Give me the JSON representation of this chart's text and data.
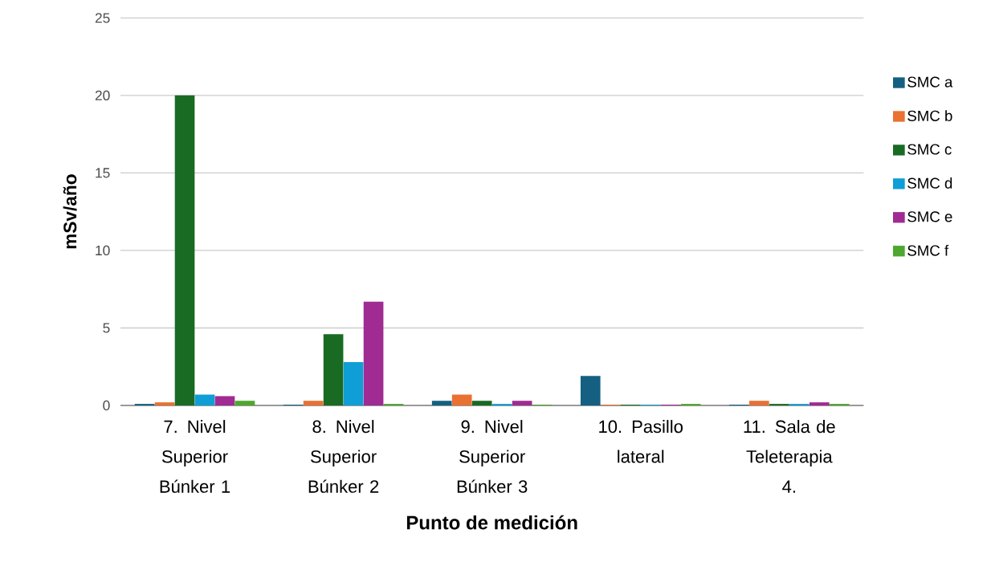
{
  "chart_data": {
    "type": "bar",
    "xlabel": "Punto de medición",
    "ylabel": "mSv/año",
    "categories": [
      "7. Nivel Superior Búnker 1",
      "8. Nivel Superior Búnker 2",
      "9. Nivel Superior Búnker 3",
      "10. Pasillo lateral",
      "11. Sala de Teleterapia 4."
    ],
    "series": [
      {
        "name": "SMC a",
        "color": "#156082",
        "values": [
          0.1,
          0.05,
          0.3,
          1.9,
          0.05
        ]
      },
      {
        "name": "SMC b",
        "color": "#e97132",
        "values": [
          0.2,
          0.3,
          0.7,
          0.05,
          0.3
        ]
      },
      {
        "name": "SMC c",
        "color": "#196b24",
        "values": [
          20,
          4.6,
          0.3,
          0.05,
          0.1
        ]
      },
      {
        "name": "SMC d",
        "color": "#0f9ed5",
        "values": [
          0.7,
          2.8,
          0.1,
          0.05,
          0.1
        ]
      },
      {
        "name": "SMC e",
        "color": "#a02b93",
        "values": [
          0.6,
          6.7,
          0.3,
          0.05,
          0.2
        ]
      },
      {
        "name": "SMC f",
        "color": "#4ea72e",
        "values": [
          0.3,
          0.1,
          0.05,
          0.1,
          0.1
        ]
      }
    ],
    "ylim": [
      0,
      25
    ],
    "yticks": [
      0,
      5,
      10,
      15,
      20,
      25
    ],
    "grid": "y",
    "legend": "right"
  }
}
